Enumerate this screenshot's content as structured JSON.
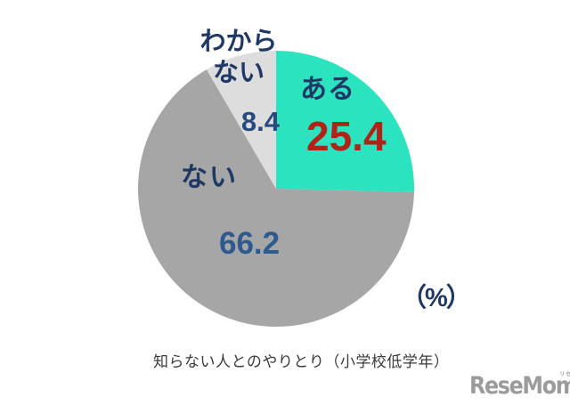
{
  "chart_data": {
    "type": "pie",
    "title": "知らない人とのやりとり（小学校低学年）",
    "unit_label": "（%）",
    "start_angle": "top",
    "direction": "clockwise",
    "legend_position": "none",
    "label_color": "#1F3864",
    "slices": [
      {
        "label": "ある",
        "value": 25.4,
        "color": "#2CE3BF",
        "value_color": "#B02418"
      },
      {
        "label": "ない",
        "value": 66.2,
        "color": "#A6A6A6",
        "value_color": "#2E5A8F"
      },
      {
        "label": "わからない",
        "label_line1": "わから",
        "label_line2": "ない",
        "value": 8.4,
        "color": "#DDDDDE",
        "value_color": "#27497E"
      }
    ]
  },
  "logo": {
    "text": "ReseMom",
    "dot": ".",
    "ruby": "リセマム"
  }
}
